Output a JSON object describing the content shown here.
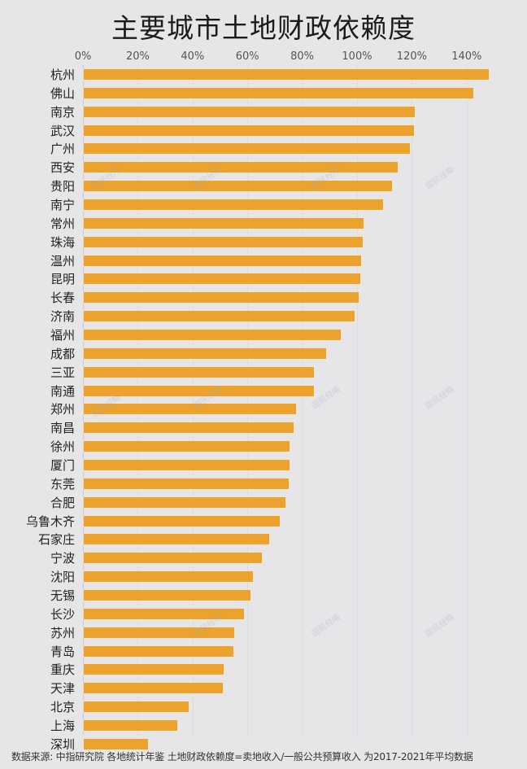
{
  "title": "主要城市土地财政依赖度",
  "footer": "数据来源: 中指研究院 各地统计年鉴  土地财政依赖度=卖地收入/一般公共预算收入 为2017-2021年平均数据",
  "watermark": "国民经略",
  "colors": {
    "bar": "#eba22e",
    "background": "#e6e5e8"
  },
  "chart_data": {
    "type": "bar",
    "orientation": "horizontal",
    "title": "主要城市土地财政依赖度",
    "xlabel": "",
    "ylabel": "",
    "x_ticks": [
      "0%",
      "20%",
      "40%",
      "60%",
      "80%",
      "100%",
      "120%",
      "140%"
    ],
    "xlim": [
      0,
      150
    ],
    "grid": true,
    "legend": null,
    "categories": [
      "杭州",
      "佛山",
      "南京",
      "武汉",
      "广州",
      "西安",
      "贵阳",
      "南宁",
      "常州",
      "珠海",
      "温州",
      "昆明",
      "长春",
      "济南",
      "福州",
      "成都",
      "三亚",
      "南通",
      "郑州",
      "南昌",
      "徐州",
      "厦门",
      "东莞",
      "合肥",
      "乌鲁木齐",
      "石家庄",
      "宁波",
      "沈阳",
      "无锡",
      "长沙",
      "苏州",
      "青岛",
      "重庆",
      "天津",
      "北京",
      "上海",
      "深圳"
    ],
    "values": [
      147.8,
      142.0,
      120.8,
      120.5,
      119.0,
      114.5,
      112.5,
      109.2,
      102.1,
      101.9,
      101.2,
      101.0,
      100.3,
      98.8,
      93.8,
      88.4,
      84.0,
      84.0,
      77.4,
      76.6,
      75.2,
      75.2,
      74.8,
      73.5,
      71.5,
      67.7,
      65.0,
      61.7,
      60.8,
      58.6,
      54.9,
      54.5,
      50.9,
      50.6,
      38.2,
      34.1,
      23.3
    ],
    "unit": "%",
    "source_note": "数据来源: 中指研究院 各地统计年鉴  土地财政依赖度=卖地收入/一般公共预算收入 为2017-2021年平均数据"
  }
}
